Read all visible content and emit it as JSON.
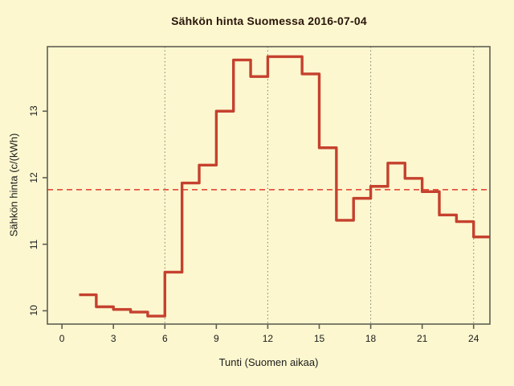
{
  "title": "Sähkön hinta Suomessa 2016-07-04",
  "chart_data": {
    "type": "line",
    "style": "step-post",
    "title": "Sähkön hinta Suomessa 2016-07-04",
    "xlabel": "Tunti (Suomen aikaa)",
    "ylabel": "Sähkön hinta (c/(kWh)",
    "x": [
      1,
      2,
      3,
      4,
      5,
      6,
      7,
      8,
      9,
      10,
      11,
      12,
      13,
      14,
      15,
      16,
      17,
      18,
      19,
      20,
      21,
      22,
      23,
      24
    ],
    "values": [
      10.24,
      10.06,
      10.02,
      9.98,
      9.92,
      10.58,
      11.92,
      12.19,
      13.0,
      13.77,
      13.52,
      13.82,
      13.82,
      13.56,
      12.45,
      11.36,
      11.69,
      11.87,
      12.22,
      11.99,
      11.79,
      11.44,
      11.34,
      11.11
    ],
    "mean_line_y": 11.82,
    "x_ticks": [
      0,
      3,
      6,
      9,
      12,
      15,
      18,
      21,
      24
    ],
    "y_ticks": [
      10,
      11,
      12,
      13
    ],
    "grid_x": [
      6,
      12,
      18,
      24
    ],
    "xlim": [
      -0.85,
      24.95
    ],
    "ylim": [
      9.8,
      13.97
    ],
    "legend": null,
    "colors": {
      "background": "#fcf7cf",
      "series": "#c5412e",
      "mean_dashed": "#e23b2b",
      "frame": "#5f5f54",
      "grid": "#8a8a78",
      "text": "#1c1c1c",
      "title_text": "#2a160a"
    }
  }
}
